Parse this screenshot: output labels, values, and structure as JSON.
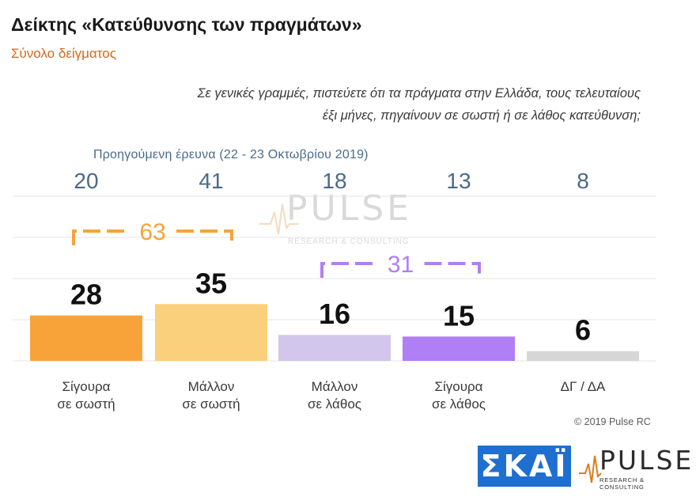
{
  "header": {
    "title": "Δείκτης «Κατεύθυνσης των πραγμάτων»",
    "subtitle": "Σύνολο δείγματος",
    "question_line1": "Σε γενικές γραμμές, πιστεύετε ότι τα πράγματα στην Ελλάδα, τους τελευταίους",
    "question_line2": "έξι μήνες, πηγαίνουν σε σωστή ή σε λάθος κατεύθυνση;"
  },
  "previous_survey_label": "Προηγούμενη έρευνα  (22 - 23  Οκτωβρίου  2019)",
  "chart_data": {
    "type": "bar",
    "categories": [
      [
        "Σίγουρα",
        "σε σωστή"
      ],
      [
        "Μάλλον",
        "σε σωστή"
      ],
      [
        "Μάλλον",
        "σε λάθος"
      ],
      [
        "Σίγουρα",
        "σε λάθος"
      ],
      [
        "ΔΓ / ΔΑ"
      ]
    ],
    "values": [
      28,
      35,
      16,
      15,
      6
    ],
    "previous_values": [
      20,
      41,
      18,
      13,
      8
    ],
    "colors": [
      "#f7a33a",
      "#fbd07c",
      "#d3c6ec",
      "#b07ef5",
      "#d6d6d6"
    ],
    "groups": [
      {
        "label": "63",
        "from": 0,
        "to": 1,
        "color": "#f7a33a"
      },
      {
        "label": "31",
        "from": 2,
        "to": 3,
        "color": "#b07ef5"
      }
    ],
    "grid": true
  },
  "footer": {
    "copyright": "© 2019 Pulse RC"
  },
  "logos": {
    "skai": "ΣΚΑΪ",
    "pulse_word": "PULSE",
    "pulse_tag": "RESEARCH & CONSULTING"
  }
}
